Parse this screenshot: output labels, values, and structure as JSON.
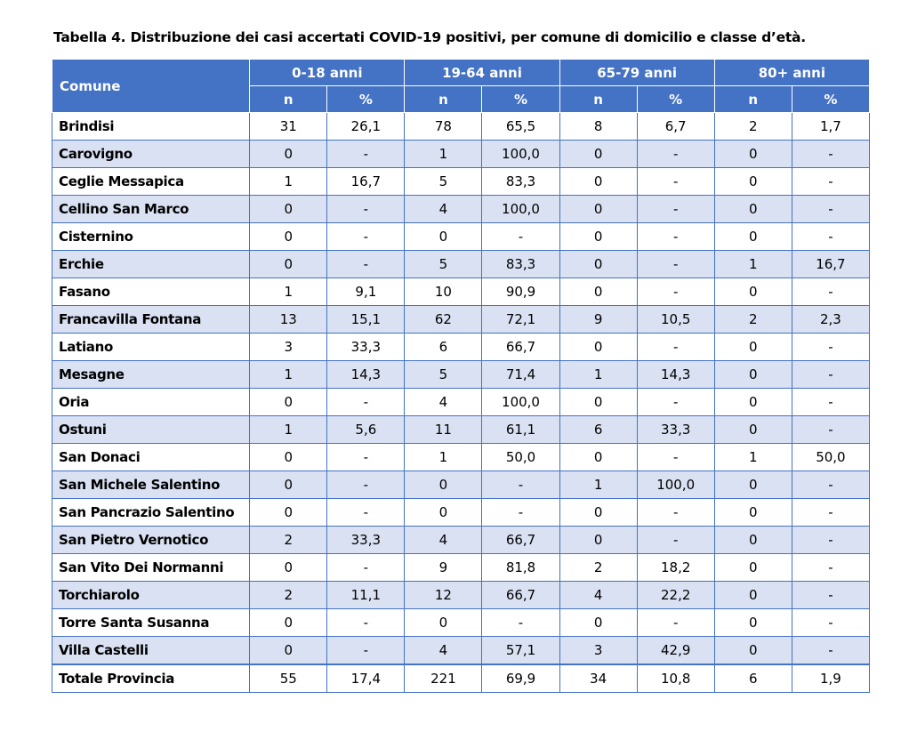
{
  "caption": "Tabella 4. Distribuzione dei casi accertati COVID-19 positivi, per comune di domicilio e classe d’età.",
  "header": {
    "comune": "Comune",
    "groups": [
      "0-18 anni",
      "19-64 anni",
      "65-79 anni",
      "80+ anni"
    ],
    "n_label": "n",
    "pct_label": "%"
  },
  "rows": [
    [
      "Brindisi",
      "31",
      "26,1",
      "78",
      "65,5",
      "8",
      "6,7",
      "2",
      "1,7"
    ],
    [
      "Carovigno",
      "0",
      "-",
      "1",
      "100,0",
      "0",
      "-",
      "0",
      "-"
    ],
    [
      "Ceglie Messapica",
      "1",
      "16,7",
      "5",
      "83,3",
      "0",
      "-",
      "0",
      "-"
    ],
    [
      "Cellino San Marco",
      "0",
      "-",
      "4",
      "100,0",
      "0",
      "-",
      "0",
      "-"
    ],
    [
      "Cisternino",
      "0",
      "-",
      "0",
      "-",
      "0",
      "-",
      "0",
      "-"
    ],
    [
      "Erchie",
      "0",
      "-",
      "5",
      "83,3",
      "0",
      "-",
      "1",
      "16,7"
    ],
    [
      "Fasano",
      "1",
      "9,1",
      "10",
      "90,9",
      "0",
      "-",
      "0",
      "-"
    ],
    [
      "Francavilla Fontana",
      "13",
      "15,1",
      "62",
      "72,1",
      "9",
      "10,5",
      "2",
      "2,3"
    ],
    [
      "Latiano",
      "3",
      "33,3",
      "6",
      "66,7",
      "0",
      "-",
      "0",
      "-"
    ],
    [
      "Mesagne",
      "1",
      "14,3",
      "5",
      "71,4",
      "1",
      "14,3",
      "0",
      "-"
    ],
    [
      "Oria",
      "0",
      "-",
      "4",
      "100,0",
      "0",
      "-",
      "0",
      "-"
    ],
    [
      "Ostuni",
      "1",
      "5,6",
      "11",
      "61,1",
      "6",
      "33,3",
      "0",
      "-"
    ],
    [
      "San Donaci",
      "0",
      "-",
      "1",
      "50,0",
      "0",
      "-",
      "1",
      "50,0"
    ],
    [
      "San Michele Salentino",
      "0",
      "-",
      "0",
      "-",
      "1",
      "100,0",
      "0",
      "-"
    ],
    [
      "San Pancrazio Salentino",
      "0",
      "-",
      "0",
      "-",
      "0",
      "-",
      "0",
      "-"
    ],
    [
      "San Pietro Vernotico",
      "2",
      "33,3",
      "4",
      "66,7",
      "0",
      "-",
      "0",
      "-"
    ],
    [
      "San Vito Dei Normanni",
      "0",
      "-",
      "9",
      "81,8",
      "2",
      "18,2",
      "0",
      "-"
    ],
    [
      "Torchiarolo",
      "2",
      "11,1",
      "12",
      "66,7",
      "4",
      "22,2",
      "0",
      "-"
    ],
    [
      "Torre Santa Susanna",
      "0",
      "-",
      "0",
      "-",
      "0",
      "-",
      "0",
      "-"
    ],
    [
      "Villa Castelli",
      "0",
      "-",
      "4",
      "57,1",
      "3",
      "42,9",
      "0",
      "-"
    ],
    [
      "Totale Provincia",
      "55",
      "17,4",
      "221",
      "69,9",
      "34",
      "10,8",
      "6",
      "1,9"
    ]
  ],
  "colors": {
    "header_bg": "#4472c4",
    "band_bg": "#d9e1f3",
    "border": "#4472c4"
  }
}
